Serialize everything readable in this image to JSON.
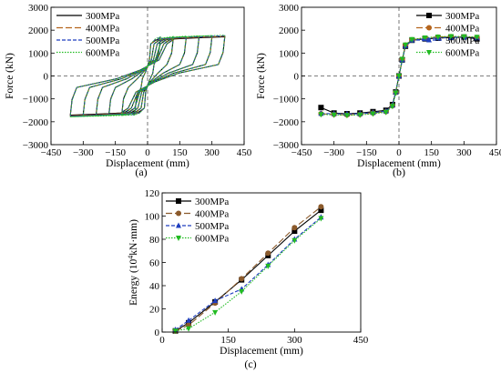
{
  "chart_data": [
    {
      "panel": "a",
      "type": "line",
      "label": "(a)",
      "xlabel": "Displacement (mm)",
      "ylabel": "Force (kN)",
      "xlim": [
        -450,
        450
      ],
      "ylim": [
        -3000,
        3000
      ],
      "xticks": [
        -450,
        -300,
        -150,
        0,
        150,
        300,
        450
      ],
      "xtick_labels": [
        "−450",
        "−300",
        "−150",
        "0",
        "150",
        "300",
        "450"
      ],
      "yticks": [
        -3000,
        -2000,
        -1000,
        0,
        1000,
        2000,
        3000
      ],
      "ytick_labels": [
        "−3000",
        "−2000",
        "−1000",
        "0",
        "1000",
        "2000",
        "3000"
      ],
      "legend_position": "top-left",
      "series": [
        {
          "name": "300MPa",
          "color": "#000000",
          "dash": "",
          "amplitudes": [
            60,
            120,
            180,
            240,
            300,
            360
          ]
        },
        {
          "name": "400MPa",
          "color": "#b5651d",
          "dash": "7,3",
          "amplitudes": [
            60,
            120,
            180,
            240,
            300,
            360
          ]
        },
        {
          "name": "500MPa",
          "color": "#1f3fbf",
          "dash": "4,2",
          "amplitudes": [
            60,
            120,
            180,
            240,
            300,
            360
          ]
        },
        {
          "name": "600MPa",
          "color": "#22bb22",
          "dash": "1.5,1.5",
          "amplitudes": [
            60,
            120,
            180,
            240,
            300,
            360
          ]
        }
      ]
    },
    {
      "panel": "b",
      "type": "line",
      "label": "(b)",
      "xlabel": "Displacement (mm)",
      "ylabel": "Force (kN)",
      "xlim": [
        -450,
        450
      ],
      "ylim": [
        -3000,
        3000
      ],
      "xticks": [
        -450,
        -300,
        -150,
        0,
        150,
        300,
        450
      ],
      "xtick_labels": [
        "−450",
        "−300",
        "−150",
        "0",
        "150",
        "300",
        "450"
      ],
      "yticks": [
        -3000,
        -2000,
        -1000,
        0,
        1000,
        2000,
        3000
      ],
      "ytick_labels": [
        "−3000",
        "−2000",
        "−1000",
        "0",
        "1000",
        "2000",
        "3000"
      ],
      "legend_position": "top-right",
      "x": [
        -360,
        -300,
        -240,
        -180,
        -120,
        -60,
        -30,
        -15,
        0,
        15,
        30,
        60,
        120,
        180,
        240,
        300,
        360
      ],
      "series": [
        {
          "name": "300MPa",
          "color": "#000000",
          "marker": "square",
          "dash": "",
          "values": [
            -1380,
            -1620,
            -1650,
            -1620,
            -1560,
            -1500,
            -1250,
            -700,
            0,
            700,
            1300,
            1560,
            1620,
            1650,
            1680,
            1700,
            1620
          ]
        },
        {
          "name": "400MPa",
          "color": "#b5651d",
          "marker": "circle",
          "dash": "7,3",
          "values": [
            -1650,
            -1680,
            -1700,
            -1680,
            -1620,
            -1560,
            -1300,
            -720,
            0,
            720,
            1350,
            1580,
            1650,
            1700,
            1720,
            1700,
            1680
          ]
        },
        {
          "name": "500MPa",
          "color": "#1f3fbf",
          "marker": "triangle-up",
          "dash": "4,2",
          "values": [
            -1640,
            -1650,
            -1660,
            -1650,
            -1600,
            -1540,
            -1280,
            -700,
            0,
            700,
            1320,
            1560,
            1620,
            1660,
            1680,
            1690,
            1660
          ]
        },
        {
          "name": "600MPa",
          "color": "#22bb22",
          "marker": "triangle-down",
          "dash": "1.5,1.5",
          "values": [
            -1680,
            -1700,
            -1720,
            -1700,
            -1650,
            -1580,
            -1320,
            -740,
            0,
            740,
            1360,
            1600,
            1670,
            1710,
            1730,
            1720,
            1700
          ]
        }
      ]
    },
    {
      "panel": "c",
      "type": "line",
      "label": "(c)",
      "xlabel": "Displacement (mm)",
      "ylabel": "Energy (10",
      "ylabel_sup": "4",
      "ylabel_tail": "kN·mm)",
      "xlim": [
        0,
        450
      ],
      "ylim": [
        0,
        120
      ],
      "xticks": [
        0,
        150,
        300,
        450
      ],
      "xtick_labels": [
        "0",
        "150",
        "300",
        "450"
      ],
      "yticks": [
        0,
        20,
        40,
        60,
        80,
        100,
        120
      ],
      "ytick_labels": [
        "0",
        "20",
        "40",
        "60",
        "80",
        "100",
        "120"
      ],
      "legend_position": "top-left",
      "x": [
        30,
        60,
        120,
        180,
        240,
        300,
        360
      ],
      "series": [
        {
          "name": "300MPa",
          "color": "#000000",
          "marker": "square",
          "dash": "",
          "values": [
            1,
            8,
            26,
            45,
            66,
            87,
            105
          ]
        },
        {
          "name": "400MPa",
          "color": "#8b5a2b",
          "marker": "circle",
          "dash": "7,3",
          "values": [
            1,
            6,
            25,
            46,
            68,
            90,
            108
          ]
        },
        {
          "name": "500MPa",
          "color": "#1f3fbf",
          "marker": "triangle-up",
          "dash": "4,2",
          "values": [
            2,
            10,
            27,
            37,
            58,
            80,
            99
          ]
        },
        {
          "name": "600MPa",
          "color": "#22bb22",
          "marker": "triangle-down",
          "dash": "1.5,1.5",
          "values": [
            1,
            3,
            17,
            35,
            57,
            79,
            98
          ]
        }
      ]
    }
  ]
}
